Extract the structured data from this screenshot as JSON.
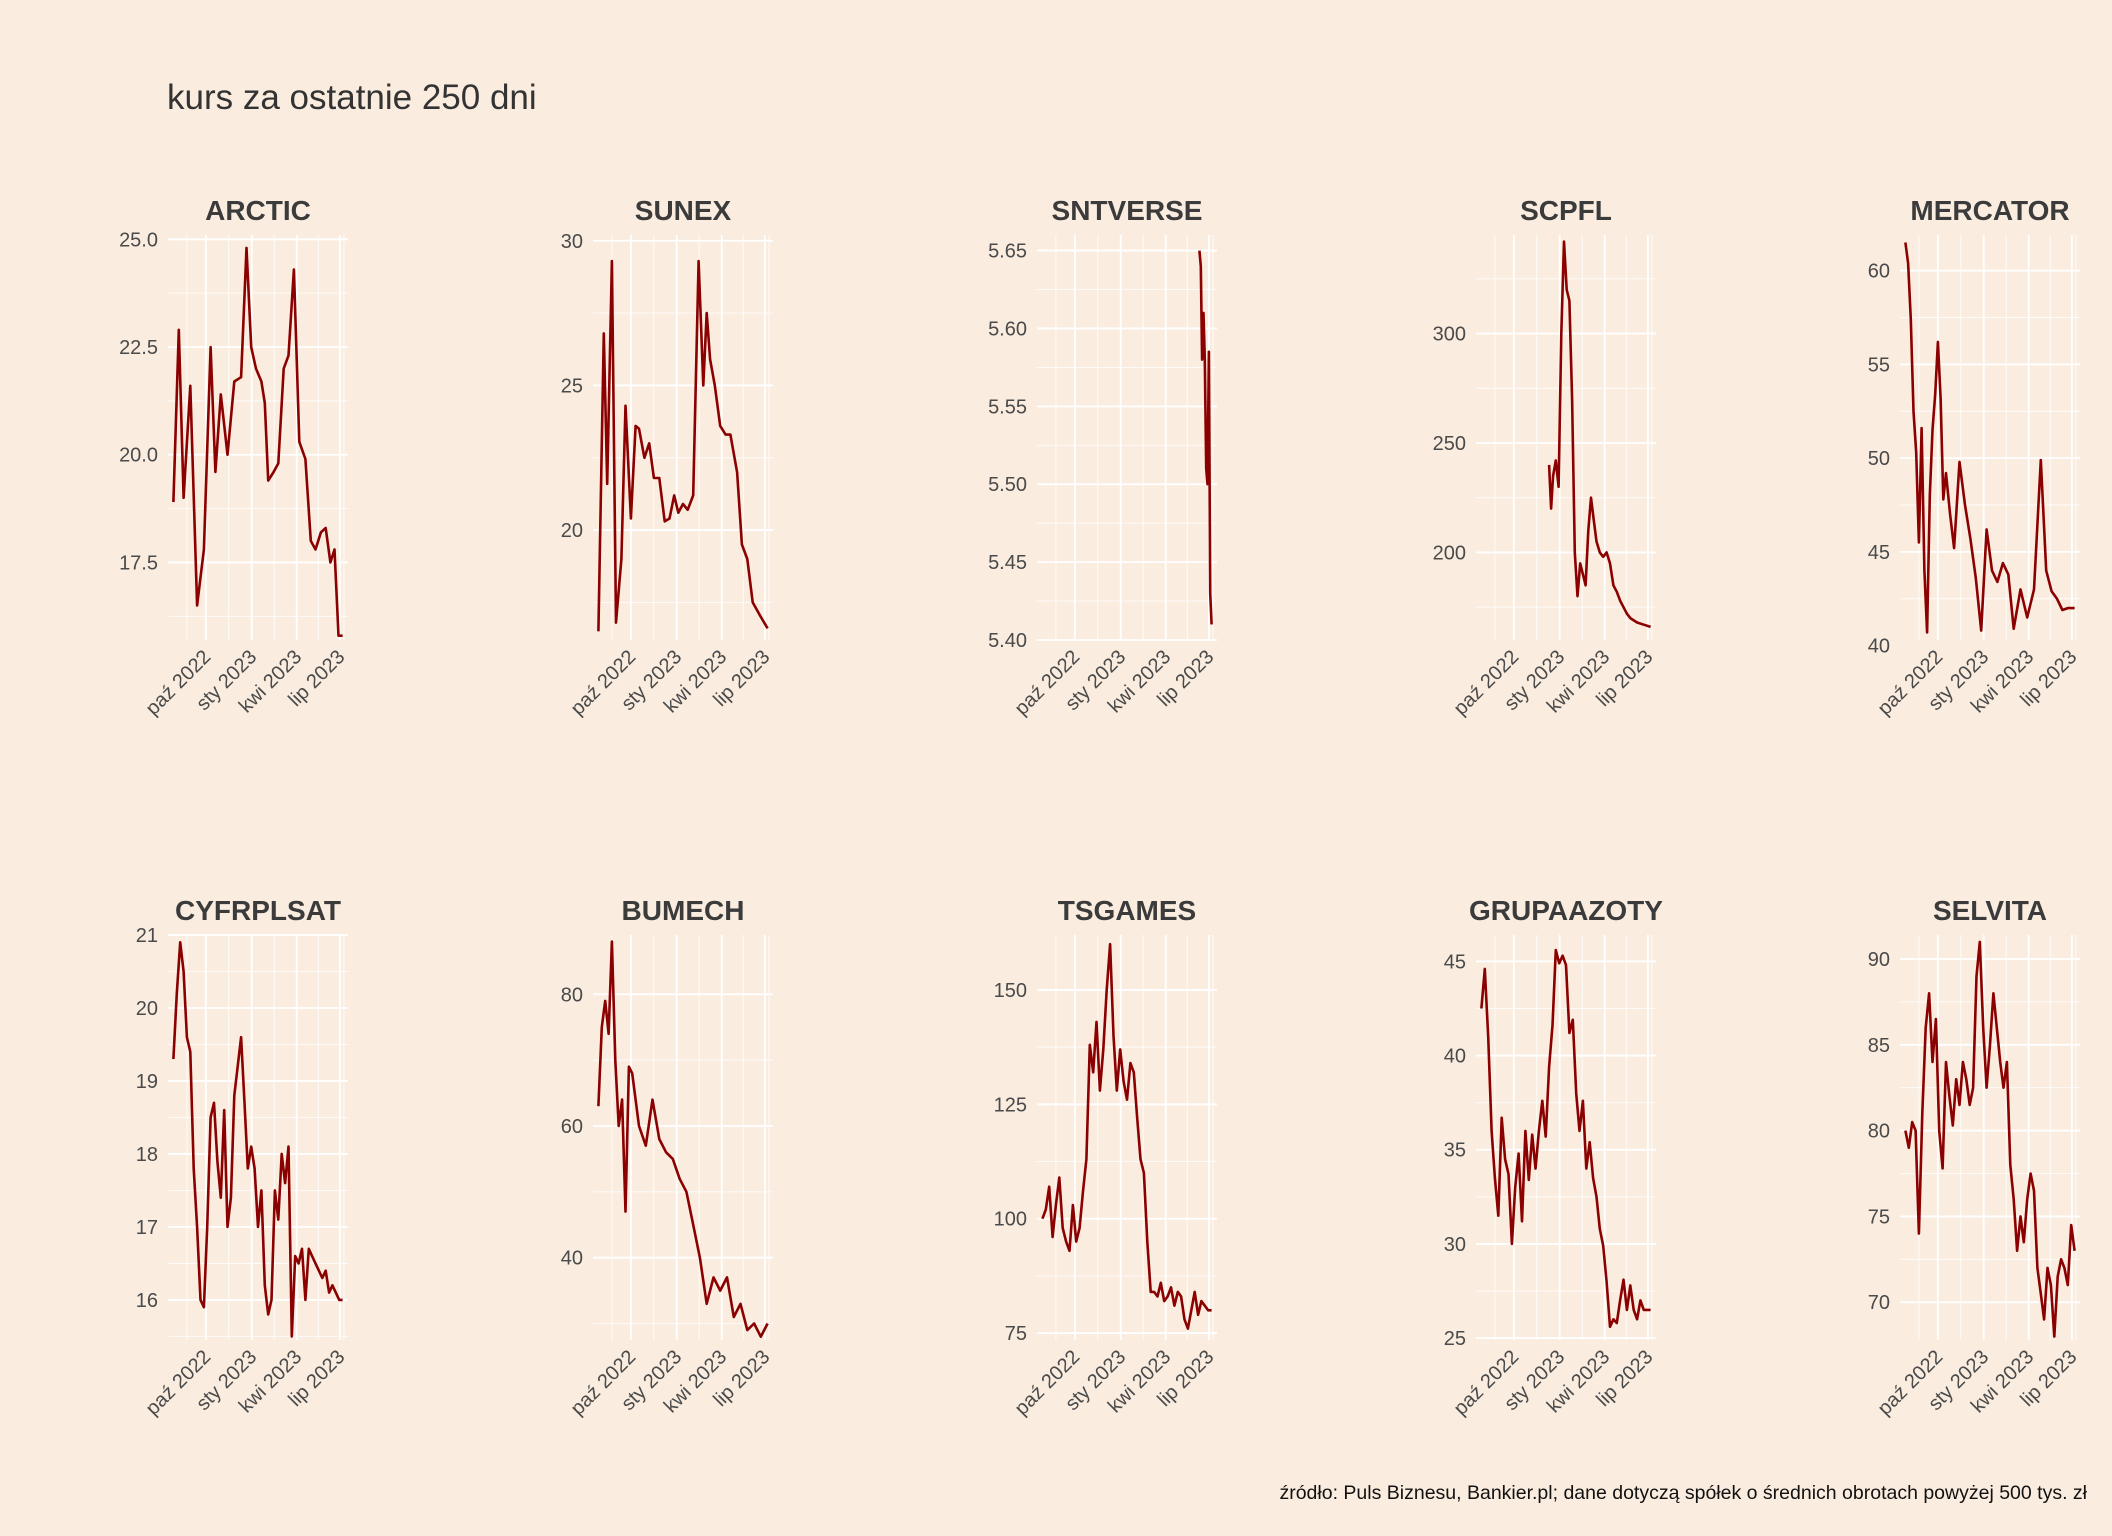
{
  "title": "kurs za ostatnie 250 dni",
  "caption": "źródło: Puls Biznesu, Bankier.pl; dane dotyczą spółek o średnich obrotach powyżej 500 tys. zł",
  "colors": {
    "background": "#FAEDE0",
    "line": "#8B0000",
    "grid": "#FFFFFF"
  },
  "chart_data": [
    {
      "type": "line",
      "title": "ARCTIC",
      "x_ticks": [
        "paź 2022",
        "sty 2023",
        "kwi 2023",
        "lip 2023"
      ],
      "y_ticks": [
        17.5,
        20.0,
        22.5,
        25.0
      ],
      "y_tick_labels": [
        "17.5",
        "20.0",
        "22.5",
        "25.0"
      ],
      "ylim": [
        15.7,
        25.1
      ],
      "series": [
        {
          "x": [
            0,
            8,
            15,
            25,
            35,
            45,
            55,
            62,
            70,
            80,
            90,
            100,
            108,
            115,
            122,
            130,
            135,
            140,
            148,
            155,
            163,
            170,
            178,
            186,
            195,
            203,
            210,
            218,
            225,
            232,
            238,
            244,
            250
          ],
          "y": [
            18.9,
            22.9,
            19.0,
            21.6,
            16.5,
            17.8,
            22.5,
            19.6,
            21.4,
            20.0,
            21.7,
            21.8,
            24.8,
            22.5,
            22.0,
            21.7,
            21.2,
            19.4,
            19.6,
            19.8,
            22.0,
            22.3,
            24.3,
            20.3,
            19.9,
            18.0,
            17.8,
            18.2,
            18.3,
            17.5,
            17.8,
            15.8,
            15.8
          ]
        }
      ]
    },
    {
      "type": "line",
      "title": "SUNEX",
      "x_ticks": [
        "paź 2022",
        "sty 2023",
        "kwi 2023",
        "lip 2023"
      ],
      "y_ticks": [
        20,
        25,
        30
      ],
      "y_tick_labels": [
        "20",
        "25",
        "30"
      ],
      "ylim": [
        16.2,
        30.2
      ],
      "series": [
        {
          "x": [
            0,
            8,
            13,
            20,
            26,
            34,
            40,
            48,
            55,
            60,
            68,
            75,
            82,
            90,
            98,
            105,
            112,
            118,
            125,
            132,
            140,
            148,
            155,
            160,
            165,
            172,
            180,
            188,
            195,
            205,
            212,
            220,
            228,
            240,
            250
          ],
          "y": [
            16.5,
            26.8,
            21.6,
            29.3,
            16.8,
            19.0,
            24.3,
            20.4,
            23.6,
            23.5,
            22.5,
            23.0,
            21.8,
            21.8,
            20.3,
            20.4,
            21.2,
            20.6,
            20.9,
            20.7,
            21.2,
            29.3,
            25.0,
            27.5,
            25.9,
            25.0,
            23.6,
            23.3,
            23.3,
            22.0,
            19.5,
            19.0,
            17.5,
            17.0,
            16.6
          ]
        }
      ]
    },
    {
      "type": "line",
      "title": "SNTVERSE",
      "x_ticks": [
        "paź 2022",
        "sty 2023",
        "kwi 2023",
        "lip 2023"
      ],
      "y_ticks": [
        5.4,
        5.45,
        5.5,
        5.55,
        5.6,
        5.65
      ],
      "y_tick_labels": [
        "5.40",
        "5.45",
        "5.50",
        "5.55",
        "5.60",
        "5.65"
      ],
      "ylim": [
        5.4,
        5.66
      ],
      "series": [
        {
          "x": [
            232,
            234,
            236,
            238,
            240,
            242,
            244,
            246,
            248,
            250
          ],
          "y": [
            5.65,
            5.64,
            5.58,
            5.61,
            5.58,
            5.51,
            5.5,
            5.585,
            5.43,
            5.41
          ]
        }
      ]
    },
    {
      "type": "line",
      "title": "SCPFL",
      "x_ticks": [
        "paź 2022",
        "sty 2023",
        "kwi 2023",
        "lip 2023"
      ],
      "y_ticks": [
        200,
        250,
        300
      ],
      "y_tick_labels": [
        "200",
        "250",
        "300"
      ],
      "ylim": [
        160,
        345
      ],
      "series": [
        {
          "x": [
            100,
            103,
            106,
            110,
            114,
            118,
            122,
            126,
            130,
            134,
            138,
            142,
            146,
            150,
            154,
            158,
            162,
            166,
            170,
            175,
            180,
            185,
            190,
            195,
            200,
            205,
            210,
            215,
            220,
            230,
            240,
            250
          ],
          "y": [
            240,
            220,
            235,
            242,
            230,
            300,
            342,
            320,
            315,
            270,
            200,
            180,
            195,
            190,
            185,
            210,
            225,
            215,
            205,
            200,
            198,
            200,
            195,
            185,
            182,
            178,
            175,
            172,
            170,
            168,
            167,
            166
          ]
        }
      ]
    },
    {
      "type": "line",
      "title": "MERCATOR",
      "x_ticks": [
        "paź 2022",
        "sty 2023",
        "kwi 2023",
        "lip 2023"
      ],
      "y_ticks": [
        40,
        45,
        50,
        55,
        60
      ],
      "y_tick_labels": [
        "40",
        "45",
        "50",
        "55",
        "60"
      ],
      "ylim": [
        40.3,
        61.9
      ],
      "series": [
        {
          "x": [
            0,
            4,
            8,
            12,
            16,
            20,
            24,
            28,
            32,
            36,
            40,
            44,
            48,
            52,
            56,
            60,
            66,
            72,
            80,
            88,
            96,
            104,
            112,
            120,
            128,
            136,
            144,
            152,
            160,
            170,
            180,
            190,
            200,
            208,
            216,
            224,
            232,
            240,
            250
          ],
          "y": [
            61.5,
            60.4,
            57.4,
            52.5,
            50.3,
            45.5,
            51.6,
            44.0,
            40.7,
            48.0,
            51.5,
            53.4,
            56.2,
            53.2,
            47.8,
            49.2,
            47.0,
            45.2,
            49.8,
            47.5,
            45.7,
            43.6,
            40.8,
            46.2,
            44.0,
            43.4,
            44.4,
            43.8,
            40.9,
            43.0,
            41.5,
            43.0,
            49.9,
            44.0,
            42.9,
            42.5,
            41.9,
            42.0,
            42.0
          ]
        }
      ]
    },
    {
      "type": "line",
      "title": "CYFRPLSAT",
      "x_ticks": [
        "paź 2022",
        "sty 2023",
        "kwi 2023",
        "lip 2023"
      ],
      "y_ticks": [
        16,
        17,
        18,
        19,
        20,
        21
      ],
      "y_tick_labels": [
        "16",
        "17",
        "18",
        "19",
        "20",
        "21"
      ],
      "ylim": [
        15.45,
        21.0
      ],
      "series": [
        {
          "x": [
            0,
            5,
            10,
            15,
            20,
            25,
            30,
            35,
            40,
            45,
            50,
            55,
            60,
            65,
            70,
            75,
            80,
            85,
            90,
            95,
            100,
            105,
            110,
            115,
            120,
            125,
            130,
            135,
            140,
            145,
            150,
            155,
            160,
            165,
            170,
            175,
            180,
            185,
            190,
            195,
            200,
            205,
            210,
            215,
            220,
            225,
            230,
            235,
            240,
            245,
            250
          ],
          "y": [
            19.3,
            20.2,
            20.9,
            20.5,
            19.6,
            19.4,
            17.8,
            17.0,
            16.0,
            15.9,
            17.0,
            18.5,
            18.7,
            17.9,
            17.4,
            18.6,
            17.0,
            17.4,
            18.8,
            19.2,
            19.6,
            18.7,
            17.8,
            18.1,
            17.8,
            17.0,
            17.5,
            16.2,
            15.8,
            16.0,
            17.5,
            17.1,
            18.0,
            17.6,
            18.1,
            15.5,
            16.6,
            16.5,
            16.7,
            16.0,
            16.7,
            16.6,
            16.5,
            16.4,
            16.3,
            16.4,
            16.1,
            16.2,
            16.1,
            16.0,
            16.0
          ]
        }
      ]
    },
    {
      "type": "line",
      "title": "BUMECH",
      "x_ticks": [
        "paź 2022",
        "sty 2023",
        "kwi 2023",
        "lip 2023"
      ],
      "y_ticks": [
        40,
        60,
        80
      ],
      "y_tick_labels": [
        "40",
        "60",
        "80"
      ],
      "ylim": [
        27.5,
        89.0
      ],
      "series": [
        {
          "x": [
            0,
            5,
            10,
            15,
            20,
            25,
            30,
            35,
            40,
            45,
            50,
            60,
            70,
            80,
            90,
            100,
            110,
            120,
            130,
            140,
            150,
            160,
            170,
            180,
            190,
            200,
            210,
            220,
            230,
            240,
            250
          ],
          "y": [
            63,
            75,
            79,
            74,
            88,
            70,
            60,
            64,
            47,
            69,
            68,
            60,
            57,
            64,
            58,
            56,
            55,
            52,
            50,
            45,
            40,
            33,
            37,
            35,
            37,
            31,
            33,
            29,
            30,
            28,
            30
          ]
        }
      ]
    },
    {
      "type": "line",
      "title": "TSGAMES",
      "x_ticks": [
        "paź 2022",
        "sty 2023",
        "kwi 2023",
        "lip 2023"
      ],
      "y_ticks": [
        75,
        100,
        125,
        150
      ],
      "y_tick_labels": [
        "75",
        "100",
        "125",
        "150"
      ],
      "ylim": [
        73.5,
        162.0
      ],
      "series": [
        {
          "x": [
            0,
            5,
            10,
            15,
            20,
            25,
            30,
            35,
            40,
            45,
            50,
            55,
            60,
            65,
            70,
            75,
            80,
            85,
            90,
            95,
            100,
            105,
            110,
            115,
            120,
            125,
            130,
            135,
            140,
            145,
            150,
            155,
            160,
            165,
            170,
            175,
            180,
            185,
            190,
            195,
            200,
            205,
            210,
            215,
            220,
            225,
            230,
            235,
            240,
            245,
            250
          ],
          "y": [
            100,
            102,
            107,
            96,
            103,
            109,
            98,
            95,
            93,
            103,
            95,
            98,
            106,
            113,
            138,
            132,
            143,
            128,
            137,
            150,
            160,
            140,
            128,
            137,
            130,
            126,
            134,
            132,
            122,
            113,
            110,
            95,
            84,
            84,
            83,
            86,
            82,
            83,
            85,
            81,
            84,
            83,
            78,
            76,
            80,
            84,
            79,
            82,
            81,
            80,
            80
          ]
        }
      ]
    },
    {
      "type": "line",
      "title": "GRUPAAZOTY",
      "x_ticks": [
        "paź 2022",
        "sty 2023",
        "kwi 2023",
        "lip 2023"
      ],
      "y_ticks": [
        25,
        30,
        35,
        40,
        45
      ],
      "y_tick_labels": [
        "25",
        "30",
        "35",
        "40",
        "45"
      ],
      "ylim": [
        24.9,
        46.4
      ],
      "series": [
        {
          "x": [
            0,
            5,
            10,
            15,
            20,
            25,
            30,
            35,
            40,
            45,
            50,
            55,
            60,
            65,
            70,
            75,
            80,
            85,
            90,
            95,
            100,
            105,
            110,
            115,
            120,
            125,
            130,
            135,
            140,
            145,
            150,
            155,
            160,
            165,
            170,
            175,
            180,
            185,
            190,
            195,
            200,
            205,
            210,
            215,
            220,
            225,
            230,
            235,
            240,
            245,
            250
          ],
          "y": [
            42.5,
            44.6,
            41.0,
            36.0,
            33.5,
            31.5,
            36.7,
            34.5,
            33.7,
            30.0,
            33.0,
            34.8,
            31.2,
            36.0,
            33.4,
            35.8,
            34.0,
            36.0,
            37.6,
            35.7,
            39.4,
            41.6,
            45.6,
            44.9,
            45.3,
            44.8,
            41.2,
            41.9,
            38.0,
            36.0,
            37.6,
            34.0,
            35.4,
            33.5,
            32.5,
            30.8,
            29.9,
            28.0,
            25.6,
            26.0,
            25.8,
            27.0,
            28.1,
            26.5,
            27.8,
            26.5,
            26.0,
            27.0,
            26.5,
            26.5,
            26.5
          ]
        }
      ]
    },
    {
      "type": "line",
      "title": "SELVITA",
      "x_ticks": [
        "paź 2022",
        "sty 2023",
        "kwi 2023",
        "lip 2023"
      ],
      "y_ticks": [
        70,
        75,
        80,
        85,
        90
      ],
      "y_tick_labels": [
        "70",
        "75",
        "80",
        "85",
        "90"
      ],
      "ylim": [
        67.8,
        91.4
      ],
      "series": [
        {
          "x": [
            0,
            5,
            10,
            15,
            20,
            25,
            30,
            35,
            40,
            45,
            50,
            55,
            60,
            65,
            70,
            75,
            80,
            85,
            90,
            95,
            100,
            105,
            110,
            115,
            120,
            125,
            130,
            135,
            140,
            145,
            150,
            155,
            160,
            165,
            170,
            175,
            180,
            185,
            190,
            195,
            200,
            205,
            210,
            215,
            220,
            225,
            230,
            235,
            240,
            245,
            250
          ],
          "y": [
            80.0,
            79.0,
            80.5,
            80.0,
            74.0,
            81.0,
            86.0,
            88.0,
            84.0,
            86.5,
            80.0,
            77.8,
            84.0,
            82.0,
            80.3,
            83.0,
            81.5,
            84.0,
            83.0,
            81.5,
            82.5,
            89.0,
            91.0,
            86.0,
            82.5,
            85.0,
            88.0,
            86.0,
            84.0,
            82.5,
            84.0,
            78.0,
            76.0,
            73.0,
            75.0,
            73.5,
            76.0,
            77.5,
            76.5,
            72.0,
            70.5,
            69.0,
            72.0,
            71.0,
            68.0,
            71.5,
            72.5,
            72.0,
            71.0,
            74.5,
            73.0
          ]
        }
      ]
    }
  ]
}
